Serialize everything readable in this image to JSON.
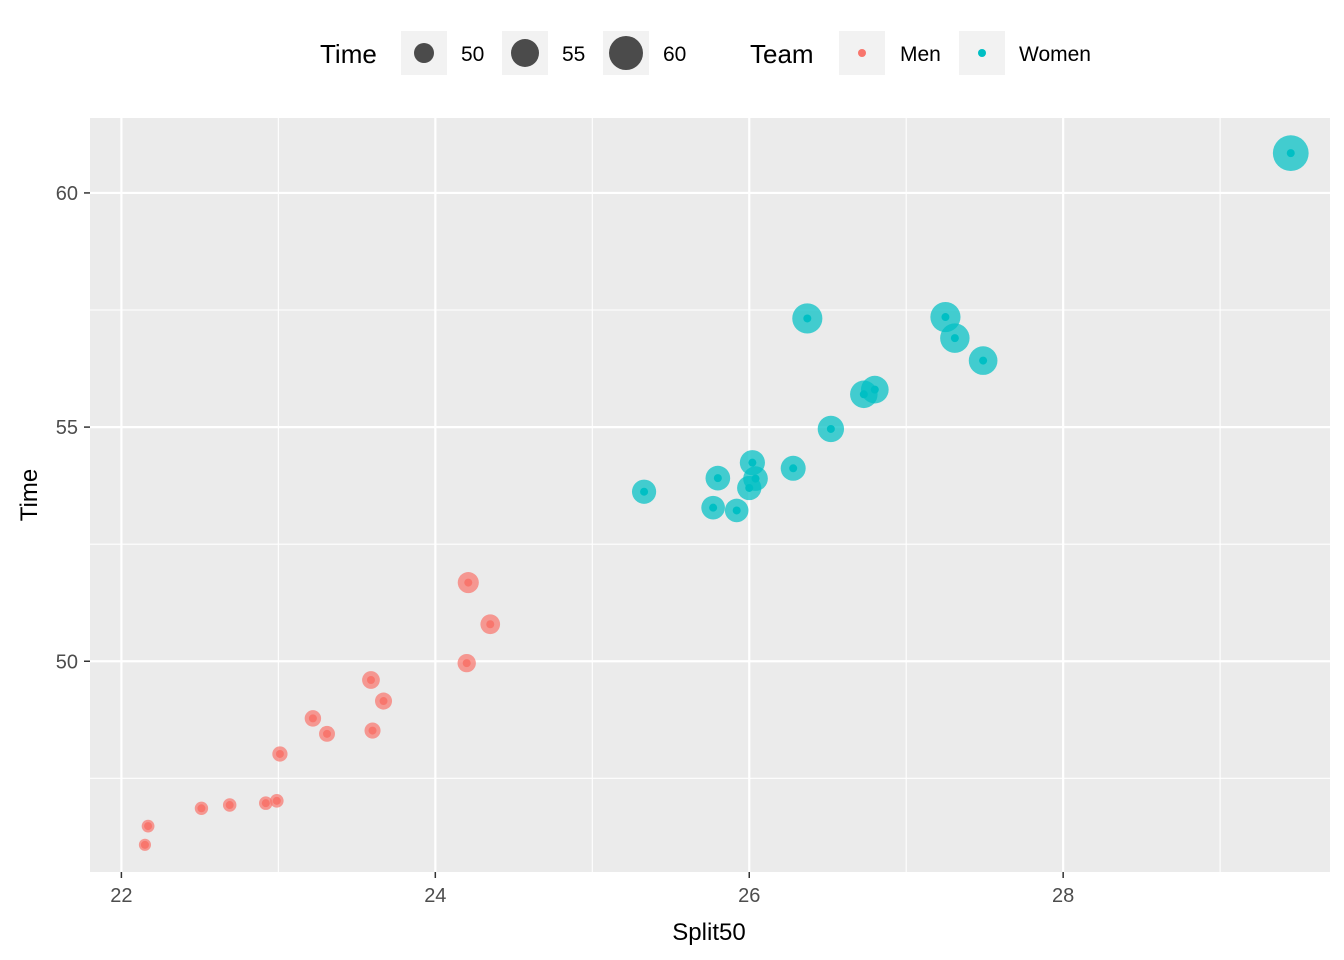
{
  "chart_data": {
    "type": "scatter",
    "title": "",
    "xlabel": "Split50",
    "ylabel": "Time",
    "xlim": [
      21.8,
      29.7
    ],
    "ylim": [
      45.5,
      61.6
    ],
    "xticks": [
      22,
      24,
      26,
      28
    ],
    "yticks": [
      50,
      55,
      60
    ],
    "grid": true,
    "legend_position": "top",
    "size_legend": {
      "title": "Time",
      "breaks": [
        50,
        55,
        60
      ]
    },
    "color_legend": {
      "title": "Team",
      "entries": [
        "Men",
        "Women"
      ]
    },
    "series": [
      {
        "name": "Men",
        "color": "#F8766D",
        "points": [
          {
            "x": 22.15,
            "y": 46.08
          },
          {
            "x": 22.17,
            "y": 46.48
          },
          {
            "x": 22.51,
            "y": 46.86
          },
          {
            "x": 22.69,
            "y": 46.93
          },
          {
            "x": 22.92,
            "y": 46.97
          },
          {
            "x": 22.99,
            "y": 47.02
          },
          {
            "x": 23.01,
            "y": 48.02
          },
          {
            "x": 23.22,
            "y": 48.78
          },
          {
            "x": 23.31,
            "y": 48.45
          },
          {
            "x": 23.59,
            "y": 49.6
          },
          {
            "x": 23.6,
            "y": 48.52
          },
          {
            "x": 23.67,
            "y": 49.15
          },
          {
            "x": 24.2,
            "y": 49.96
          },
          {
            "x": 24.21,
            "y": 51.68
          },
          {
            "x": 24.35,
            "y": 50.79
          }
        ]
      },
      {
        "name": "Women",
        "color": "#00BFC4",
        "points": [
          {
            "x": 25.33,
            "y": 53.62
          },
          {
            "x": 25.77,
            "y": 53.28
          },
          {
            "x": 25.8,
            "y": 53.91
          },
          {
            "x": 25.92,
            "y": 53.22
          },
          {
            "x": 26.0,
            "y": 53.7
          },
          {
            "x": 26.02,
            "y": 54.24
          },
          {
            "x": 26.04,
            "y": 53.9
          },
          {
            "x": 26.28,
            "y": 54.12
          },
          {
            "x": 26.37,
            "y": 57.32
          },
          {
            "x": 26.52,
            "y": 54.96
          },
          {
            "x": 26.73,
            "y": 55.7
          },
          {
            "x": 26.8,
            "y": 55.8
          },
          {
            "x": 27.25,
            "y": 57.35
          },
          {
            "x": 27.31,
            "y": 56.9
          },
          {
            "x": 27.49,
            "y": 56.42
          },
          {
            "x": 29.45,
            "y": 60.85
          }
        ]
      }
    ]
  }
}
